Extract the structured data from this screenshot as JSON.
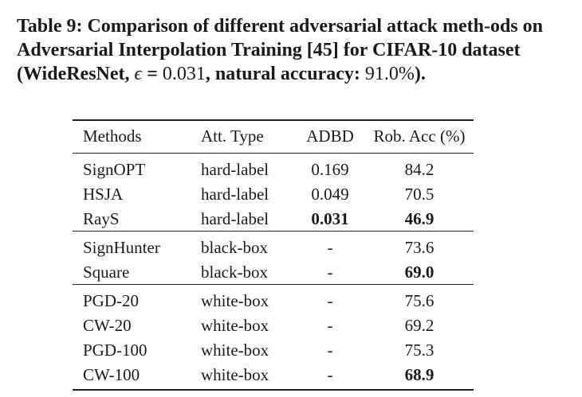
{
  "caption": {
    "part1": "Table 9: Comparison of different adversarial attack meth-ods on Adversarial Interpolation Training [45] for CIFAR-10 dataset (WideResNet, ",
    "epsilon_symbol": "ϵ",
    "part2": " = ",
    "epsilon_value": "0.031",
    "part3": ", natural accuracy: ",
    "natural_accuracy": "91.0%",
    "part4": ")."
  },
  "table": {
    "headers": [
      "Methods",
      "Att. Type",
      "ADBD",
      "Rob. Acc (%)"
    ],
    "groups": [
      {
        "rows": [
          {
            "method": "SignOPT",
            "type": "hard-label",
            "adbd": "0.169",
            "acc": "84.2",
            "adbd_bold": false,
            "acc_bold": false
          },
          {
            "method": "HSJA",
            "type": "hard-label",
            "adbd": "0.049",
            "acc": "70.5",
            "adbd_bold": false,
            "acc_bold": false
          },
          {
            "method": "RayS",
            "type": "hard-label",
            "adbd": "0.031",
            "acc": "46.9",
            "adbd_bold": true,
            "acc_bold": true
          }
        ]
      },
      {
        "rows": [
          {
            "method": "SignHunter",
            "type": "black-box",
            "adbd": "-",
            "acc": "73.6",
            "adbd_bold": false,
            "acc_bold": false
          },
          {
            "method": "Square",
            "type": "black-box",
            "adbd": "-",
            "acc": "69.0",
            "adbd_bold": false,
            "acc_bold": true
          }
        ]
      },
      {
        "rows": [
          {
            "method": "PGD-20",
            "type": "white-box",
            "adbd": "-",
            "acc": "75.6",
            "adbd_bold": false,
            "acc_bold": false
          },
          {
            "method": "CW-20",
            "type": "white-box",
            "adbd": "-",
            "acc": "69.2",
            "adbd_bold": false,
            "acc_bold": false
          },
          {
            "method": "PGD-100",
            "type": "white-box",
            "adbd": "-",
            "acc": "75.3",
            "adbd_bold": false,
            "acc_bold": false
          },
          {
            "method": "CW-100",
            "type": "white-box",
            "adbd": "-",
            "acc": "68.9",
            "adbd_bold": false,
            "acc_bold": true
          }
        ]
      }
    ]
  }
}
